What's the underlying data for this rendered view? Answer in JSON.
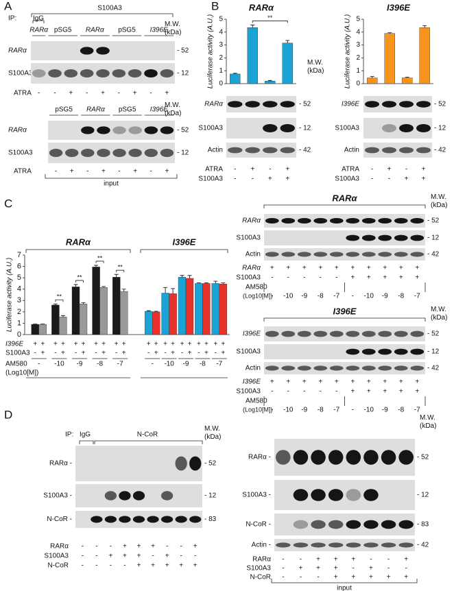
{
  "panel_a": {
    "label": "A",
    "ip": "IP:",
    "igg": "IgG",
    "ip_target": "S100A3",
    "ip_blot": {
      "mw_header": "M.W. (kDa)",
      "groups": [
        "RARα",
        "pSG5",
        "RARα",
        "pSG5",
        "I396E"
      ],
      "rows": [
        {
          "label": "RARα",
          "mw": "- 52"
        },
        {
          "label": "S100A3",
          "mw": "- 12"
        }
      ],
      "conditions": [
        {
          "label": "ATRA",
          "signs": [
            "-",
            "-",
            "+",
            "-",
            "+",
            "-",
            "+",
            "-",
            "+"
          ]
        }
      ]
    },
    "input_blot": {
      "mw_header": "M.W. (kDa)",
      "groups": [
        "pSG5",
        "RARα",
        "pSG5",
        "I396E"
      ],
      "rows": [
        {
          "label": "RARα",
          "mw": "- 52"
        },
        {
          "label": "S100A3",
          "mw": "- 12"
        }
      ],
      "conditions": [
        {
          "label": "ATRA",
          "signs": [
            "-",
            "+",
            "-",
            "+",
            "-",
            "+",
            "-",
            "+"
          ]
        }
      ],
      "footer": "input"
    }
  },
  "panel_b": {
    "label": "B",
    "blots": [
      {
        "mw_header": "M.W. (kDa)",
        "rows": [
          {
            "label": "RARα",
            "mw": "- 52"
          },
          {
            "label": "S100A3",
            "mw": "- 12"
          },
          {
            "label": "Actin",
            "mw": "- 42"
          }
        ],
        "conditions": [
          {
            "label": "ATRA",
            "signs": [
              "-",
              "+",
              "-",
              "+"
            ]
          },
          {
            "label": "S100A3",
            "signs": [
              "-",
              "-",
              "+",
              "+"
            ]
          }
        ]
      },
      {
        "rows": [
          {
            "label": "I396E",
            "mw": "- 52"
          },
          {
            "label": "S100A3",
            "mw": "- 12"
          },
          {
            "label": "Actin",
            "mw": "- 42"
          }
        ],
        "conditions": [
          {
            "label": "ATRA",
            "signs": [
              "-",
              "+",
              "-",
              "+"
            ]
          },
          {
            "label": "S100A3",
            "signs": [
              "-",
              "-",
              "+",
              "+"
            ]
          }
        ]
      }
    ]
  },
  "panel_c": {
    "label": "C",
    "conditions": [
      {
        "label": "I396E",
        "signs": [
          "+",
          "+",
          "+",
          "+",
          "+",
          "+",
          "+",
          "+",
          "+",
          "+",
          "+",
          "+",
          "+",
          "+",
          "+",
          "+",
          "+",
          "+",
          "+",
          "+"
        ]
      },
      {
        "label": "S100A3",
        "signs": [
          "-",
          "+",
          "-",
          "+",
          "-",
          "+",
          "-",
          "+",
          "-",
          "+",
          "-",
          "+",
          "-",
          "+",
          "-",
          "+",
          "-",
          "+",
          "-",
          "+"
        ]
      }
    ],
    "am580": "AM580",
    "am580_unit": "(Log10[M])",
    "blots": [
      {
        "title": "RARα",
        "mw_header": "M.W. (kDa)",
        "rows": [
          {
            "label": "RARα",
            "mw": "- 52"
          },
          {
            "label": "S100A3",
            "mw": "- 12"
          },
          {
            "label": "Actin",
            "mw": "- 42"
          }
        ],
        "conditions": [
          {
            "label": "RARα",
            "signs": [
              "+",
              "+",
              "+",
              "+",
              "+",
              "+",
              "+",
              "+",
              "+",
              "+"
            ]
          },
          {
            "label": "S100A3",
            "signs": [
              "-",
              "-",
              "-",
              "-",
              "-",
              "+",
              "+",
              "+",
              "+",
              "+"
            ]
          }
        ],
        "am580": "AM580",
        "am580_unit": "(Log10[M])",
        "levels": [
          "-",
          "-10",
          "-9",
          "-8",
          "-7",
          "-",
          "-10",
          "-9",
          "-8",
          "-7"
        ]
      },
      {
        "title": "I396E",
        "mw_header": "M.W. (kDa)",
        "rows": [
          {
            "label": "I396E",
            "mw": "- 52"
          },
          {
            "label": "S100A3",
            "mw": "- 12"
          },
          {
            "label": "Actin",
            "mw": "- 42"
          }
        ],
        "conditions": [
          {
            "label": "I396E",
            "signs": [
              "+",
              "+",
              "+",
              "+",
              "+",
              "+",
              "+",
              "+",
              "+",
              "+"
            ]
          },
          {
            "label": "S100A3",
            "signs": [
              "-",
              "-",
              "-",
              "-",
              "-",
              "+",
              "+",
              "+",
              "+",
              "+"
            ]
          }
        ],
        "am580": "AM580",
        "am580_unit": "(Log10[M])",
        "levels": [
          "-",
          "-10",
          "-9",
          "-8",
          "-7",
          "-",
          "-10",
          "-9",
          "-8",
          "-7"
        ]
      }
    ]
  },
  "panel_d": {
    "label": "D",
    "ip_blot": {
      "ip": "IP:",
      "igg": "IgG",
      "ip_target": "N-CoR",
      "mw_header": "M.W. (kDa)",
      "rows": [
        {
          "label": "RARα -",
          "mw": "- 52"
        },
        {
          "label": "S100A3 -",
          "mw": "- 12"
        },
        {
          "label": "N-CoR -",
          "mw": "- 83"
        }
      ],
      "conditions": [
        {
          "label": "RARα",
          "signs": [
            "-",
            "-",
            "-",
            "+",
            "+",
            "+",
            "-",
            "-",
            "+"
          ]
        },
        {
          "label": "S100A3",
          "signs": [
            "-",
            "-",
            "+",
            "+",
            "+",
            "-",
            "+",
            "-",
            "-"
          ]
        },
        {
          "label": "N-CoR",
          "signs": [
            "-",
            "-",
            "-",
            "-",
            "+",
            "+",
            "+",
            "+",
            "+"
          ]
        }
      ]
    },
    "input_blot": {
      "mw_header": "M.W. (kDa)",
      "rows": [
        {
          "label": "RARα -",
          "mw": "- 52"
        },
        {
          "label": "S100A3 -",
          "mw": "- 12"
        },
        {
          "label": "N-CoR -",
          "mw": "- 83"
        },
        {
          "label": "Actin -",
          "mw": "- 42"
        }
      ],
      "conditions": [
        {
          "label": "RARα",
          "signs": [
            "-",
            "-",
            "+",
            "+",
            "+",
            "-",
            "-",
            "+"
          ]
        },
        {
          "label": "S100A3",
          "signs": [
            "-",
            "+",
            "+",
            "+",
            "-",
            "+",
            "-",
            "-"
          ]
        },
        {
          "label": "N-CoR",
          "signs": [
            "-",
            "-",
            "-",
            "+",
            "+",
            "+",
            "+",
            "+"
          ]
        }
      ],
      "footer": "input"
    }
  },
  "chart_data": [
    {
      "type": "bar",
      "title": "RARα",
      "y_label": "Luciferase activity (A.U.)",
      "categories": [
        null,
        null,
        null,
        null
      ],
      "series": [
        {
          "color": "#1aa3d4",
          "values": [
            0.75,
            4.35,
            0.2,
            3.15
          ],
          "errors": [
            0.05,
            0.2,
            0.05,
            0.2
          ]
        }
      ],
      "ylim": [
        0,
        5
      ],
      "yticks": [
        0,
        1,
        2,
        3,
        4,
        5
      ],
      "annotations": [
        "**"
      ]
    },
    {
      "type": "bar",
      "title": "I396E",
      "y_label": "Luciferase activity (A.U.)",
      "categories": [
        null,
        null,
        null,
        null
      ],
      "series": [
        {
          "color": "#f7941d",
          "values": [
            0.45,
            3.9,
            0.45,
            4.35
          ],
          "errors": [
            0.1,
            0.05,
            0.05,
            0.15
          ]
        }
      ],
      "ylim": [
        0,
        5
      ],
      "yticks": [
        0,
        1,
        2,
        3,
        4,
        5
      ],
      "annotations": []
    },
    {
      "type": "bar",
      "y_label": "Luciferase activity (A.U.)",
      "group_titles": [
        "RARα",
        "I396E"
      ],
      "categories": [
        "-",
        "-10",
        "-9",
        "-8",
        "-7",
        "-",
        "-10",
        "-9",
        "-8",
        "-7"
      ],
      "series": [
        {
          "color": "#1a1a1a",
          "values": [
            0.9,
            2.6,
            4.2,
            5.95,
            5.05,
            null,
            null,
            null,
            null,
            null
          ],
          "errors": [
            0.03,
            0.1,
            0.2,
            0.15,
            0.25,
            null,
            null,
            null,
            null,
            null
          ]
        },
        {
          "color": "#999999",
          "values": [
            0.9,
            1.55,
            2.7,
            4.15,
            3.8,
            null,
            null,
            null,
            null,
            null
          ],
          "errors": [
            0.03,
            0.12,
            0.1,
            0.08,
            0.2,
            null,
            null,
            null,
            null,
            null
          ]
        },
        {
          "color": "#1aa3d4",
          "values": [
            null,
            null,
            null,
            null,
            null,
            2.05,
            3.65,
            5.05,
            4.5,
            4.5
          ],
          "errors": [
            null,
            null,
            null,
            null,
            null,
            0.05,
            0.5,
            0.15,
            0.05,
            0.2
          ]
        },
        {
          "color": "#e8312a",
          "values": [
            null,
            null,
            null,
            null,
            null,
            2.0,
            3.6,
            4.95,
            4.5,
            4.45
          ],
          "errors": [
            null,
            null,
            null,
            null,
            null,
            0.05,
            0.45,
            0.25,
            0.05,
            0.1
          ]
        }
      ],
      "ylim": [
        0,
        7
      ],
      "yticks": [
        0,
        1,
        2,
        3,
        4,
        5,
        6,
        7
      ],
      "annotations": [
        "**",
        "**",
        "**",
        "**"
      ]
    }
  ]
}
